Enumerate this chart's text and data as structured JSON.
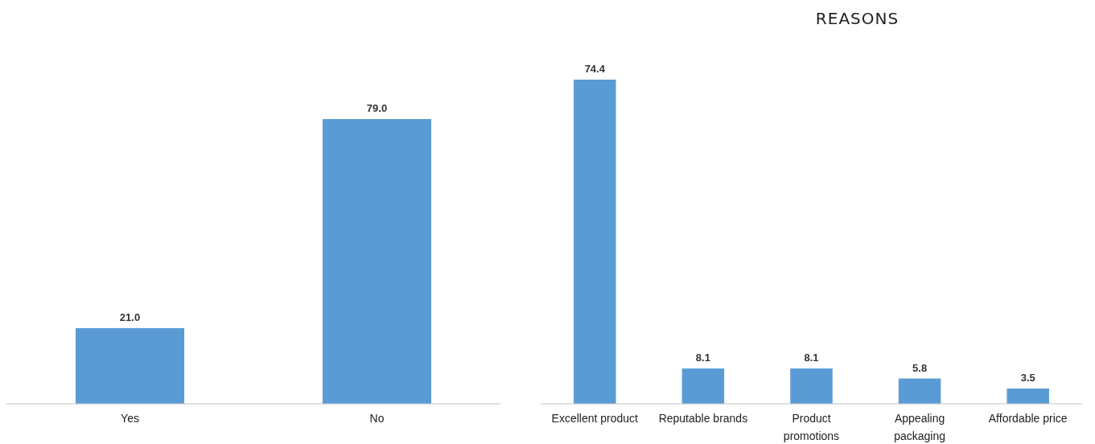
{
  "chart_data": [
    {
      "type": "bar",
      "categories": [
        "Yes",
        "No"
      ],
      "values": [
        21.0,
        79.0
      ],
      "value_labels": [
        "21.0",
        "79.0"
      ],
      "color": "#5b9bd5"
    },
    {
      "type": "bar",
      "title": "REASONS",
      "categories": [
        "Excellent product",
        "Reputable brands",
        "Product promotions",
        "Appealing packaging",
        "Affordable price"
      ],
      "values": [
        74.4,
        8.1,
        8.1,
        5.8,
        3.5
      ],
      "value_labels": [
        "74.4",
        "8.1",
        "8.1",
        "5.8",
        "3.5"
      ],
      "color": "#5b9bd5"
    }
  ]
}
